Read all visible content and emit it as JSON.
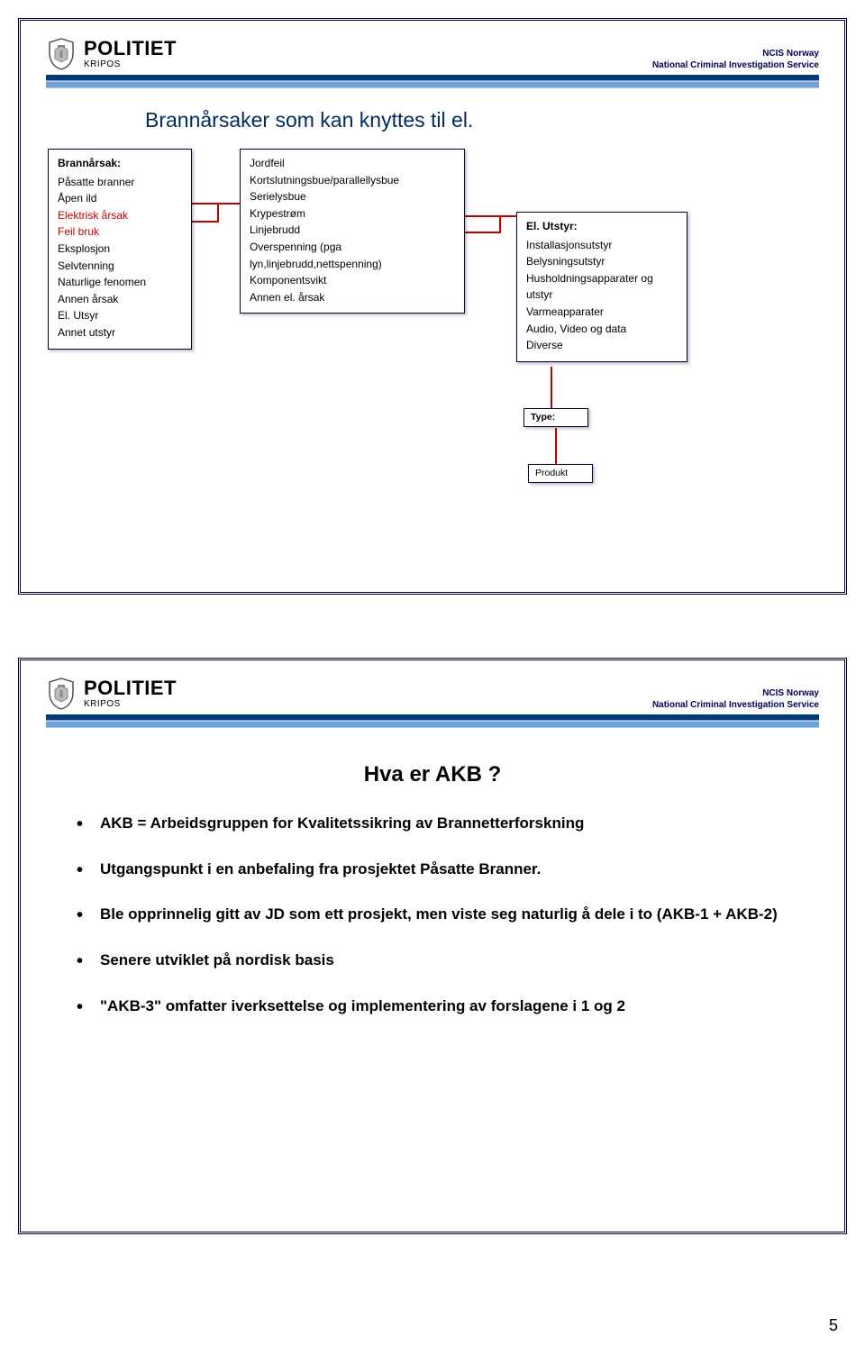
{
  "brand": {
    "title": "POLITIET",
    "sub": "KRIPOS"
  },
  "ncis": {
    "line1": "NCIS Norway",
    "line2": "National Criminal Investigation Service"
  },
  "slide1": {
    "title": "Brannårsaker som kan knyttes til el.",
    "box1": {
      "header": "Brannårsak:",
      "items": [
        {
          "text": "Påsatte branner",
          "red": false
        },
        {
          "text": "Åpen ild",
          "red": false
        },
        {
          "text": "Elektrisk årsak",
          "red": true
        },
        {
          "text": "Feil bruk",
          "red": true
        },
        {
          "text": "Eksplosjon",
          "red": false
        },
        {
          "text": "Selvtenning",
          "red": false
        },
        {
          "text": "Naturlige fenomen",
          "red": false
        },
        {
          "text": "Annen årsak",
          "red": false
        },
        {
          "text": "El. Utsyr",
          "red": false
        },
        {
          "text": "Annet utstyr",
          "red": false
        }
      ]
    },
    "box2": {
      "items": [
        "Jordfeil",
        "Kortslutningsbue/parallellysbue",
        "Serielysbue",
        "Krypestrøm",
        "Linjebrudd",
        "Overspenning (pga lyn,linjebrudd,nettspenning)",
        "Komponentsvikt",
        "Annen el. årsak"
      ]
    },
    "box3": {
      "header": "El. Utstyr:",
      "items": [
        "Installasjonsutstyr",
        "Belysningsutstyr",
        "Husholdningsapparater og utstyr",
        "Varmeapparater",
        "Audio, Video og data",
        "Diverse"
      ]
    },
    "box4": {
      "label": "Type:"
    },
    "box5": {
      "label": "Produkt"
    }
  },
  "slide2": {
    "title": "Hva er AKB ?",
    "bullets": [
      "AKB  =  Arbeidsgruppen for Kvalitetssikring av Brannetterforskning",
      "Utgangspunkt i en anbefaling fra prosjektet Påsatte Branner.",
      "Ble opprinnelig gitt av JD som ett prosjekt, men viste seg naturlig å dele i to (AKB-1  +  AKB-2)",
      "Senere utviklet på nordisk basis",
      "\"AKB-3\" omfatter iverksettelse og implementering av forslagene i 1 og 2"
    ]
  },
  "page_number": "5",
  "colors": {
    "frame": "#000033",
    "header_dark": "#003a7a",
    "header_light": "#6ea3d8",
    "red": "#c00000",
    "title_blue": "#002b5c"
  }
}
